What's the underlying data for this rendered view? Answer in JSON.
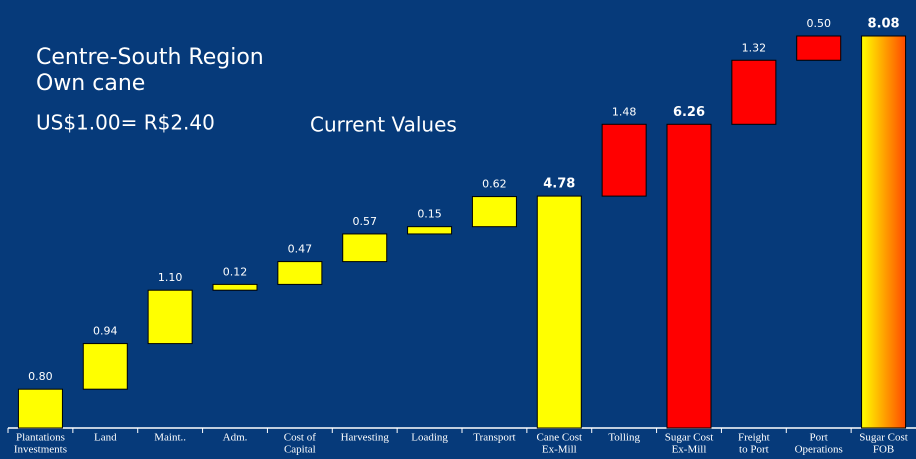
{
  "chart_data": {
    "type": "waterfall",
    "title": "Centre-South Region",
    "subtitle": "Own cane",
    "annotations": [
      "US$1.00= R$2.40",
      "Current Values"
    ],
    "categories": [
      [
        "Plantations",
        "Investments"
      ],
      [
        "Land"
      ],
      [
        "Maint.."
      ],
      [
        "Adm."
      ],
      [
        "Cost of",
        "Capital"
      ],
      [
        "Harvesting"
      ],
      [
        "Loading"
      ],
      [
        "Transport"
      ],
      [
        "Cane Cost",
        "Ex-Mill"
      ],
      [
        "Tolling"
      ],
      [
        "Sugar Cost",
        "Ex-Mill"
      ],
      [
        "Freight",
        "to Port"
      ],
      [
        "Port",
        "Operations"
      ],
      [
        "Sugar Cost",
        "FOB"
      ]
    ],
    "values": [
      0.8,
      0.94,
      1.1,
      0.12,
      0.47,
      0.57,
      0.15,
      0.62,
      4.78,
      1.48,
      6.26,
      1.32,
      0.5,
      8.08
    ],
    "value_labels": [
      "0.80",
      "0.94",
      "1.10",
      "0.12",
      "0.47",
      "0.57",
      "0.15",
      "0.62",
      "4.78",
      "1.48",
      "6.26",
      "1.32",
      "0.50",
      "8.08"
    ],
    "total_indices": [
      8,
      10,
      13
    ],
    "colors": [
      "#ffff00",
      "#ffff00",
      "#ffff00",
      "#ffff00",
      "#ffff00",
      "#ffff00",
      "#ffff00",
      "#ffff00",
      "#ffff00",
      "#ff0000",
      "#ff0000",
      "#ff0000",
      "#ff0000",
      [
        "#ffff00",
        "#ff4a00"
      ]
    ],
    "ylim": [
      0,
      8.5
    ]
  }
}
